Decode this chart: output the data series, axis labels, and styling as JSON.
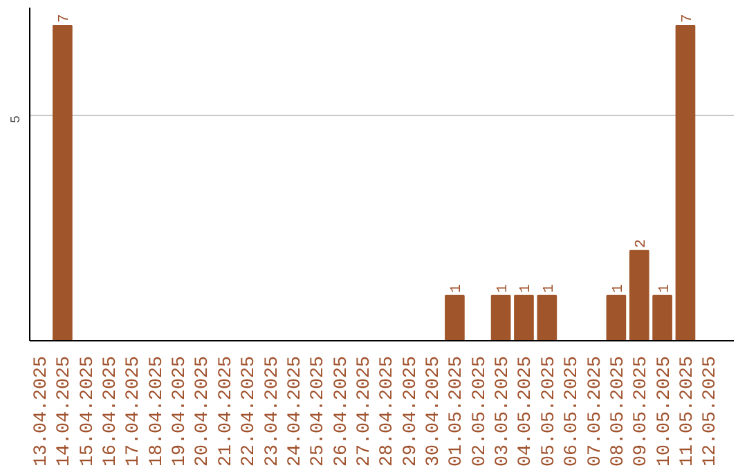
{
  "chart_data": {
    "type": "bar",
    "categories": [
      "13.04.2025",
      "14.04.2025",
      "15.04.2025",
      "16.04.2025",
      "17.04.2025",
      "18.04.2025",
      "19.04.2025",
      "20.04.2025",
      "21.04.2025",
      "22.04.2025",
      "23.04.2025",
      "24.04.2025",
      "25.04.2025",
      "26.04.2025",
      "27.04.2025",
      "28.04.2025",
      "29.04.2025",
      "30.04.2025",
      "01.05.2025",
      "02.05.2025",
      "03.05.2025",
      "04.05.2025",
      "05.05.2025",
      "06.05.2025",
      "07.05.2025",
      "08.05.2025",
      "09.05.2025",
      "10.05.2025",
      "11.05.2025",
      "12.05.2025"
    ],
    "values": [
      0,
      7,
      0,
      0,
      0,
      0,
      0,
      0,
      0,
      0,
      0,
      0,
      0,
      0,
      0,
      0,
      0,
      0,
      1,
      0,
      1,
      1,
      1,
      0,
      0,
      1,
      2,
      1,
      7,
      0
    ],
    "value_labels": [
      null,
      "7",
      null,
      null,
      null,
      null,
      null,
      null,
      null,
      null,
      null,
      null,
      null,
      null,
      null,
      null,
      null,
      null,
      "1",
      null,
      "1",
      "1",
      "1",
      null,
      null,
      "1",
      "2",
      "1",
      "7",
      null
    ],
    "color": "#a0562a",
    "ylim": [
      0,
      7.4
    ],
    "yticks": [
      5
    ],
    "grid": "y"
  }
}
